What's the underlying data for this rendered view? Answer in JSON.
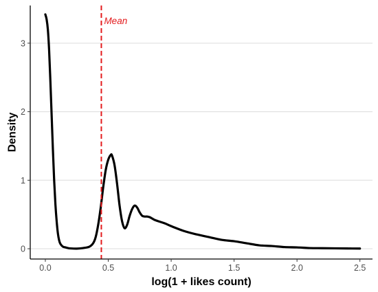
{
  "chart_data": {
    "type": "line",
    "title": "",
    "xlabel": "log(1 + likes count)",
    "ylabel": "Density",
    "xlim": [
      -0.12,
      2.6
    ],
    "ylim": [
      -0.15,
      3.55
    ],
    "xticks": [
      0.0,
      0.5,
      1.0,
      1.5,
      2.0,
      2.5
    ],
    "xtick_labels": [
      "0.0",
      "0.5",
      "1.0",
      "1.5",
      "2.0",
      "2.5"
    ],
    "yticks": [
      0,
      1,
      2,
      3
    ],
    "ytick_labels": [
      "0",
      "1",
      "2",
      "3"
    ],
    "grid": "horizontal major",
    "series": [
      {
        "x": [
          0.0,
          0.01,
          0.02,
          0.03,
          0.04,
          0.05,
          0.06,
          0.07,
          0.08,
          0.09,
          0.1,
          0.11,
          0.12,
          0.14,
          0.16,
          0.18,
          0.2,
          0.25,
          0.3,
          0.35,
          0.38,
          0.4,
          0.42,
          0.44,
          0.46,
          0.48,
          0.5,
          0.52,
          0.53,
          0.55,
          0.57,
          0.59,
          0.61,
          0.63,
          0.65,
          0.67,
          0.69,
          0.71,
          0.73,
          0.75,
          0.77,
          0.79,
          0.81,
          0.83,
          0.85,
          0.87,
          0.9,
          0.95,
          1.0,
          1.1,
          1.2,
          1.3,
          1.4,
          1.5,
          1.6,
          1.7,
          1.8,
          1.9,
          2.0,
          2.1,
          2.2,
          2.3,
          2.4,
          2.5
        ],
        "y": [
          3.42,
          3.35,
          3.2,
          2.9,
          2.45,
          1.95,
          1.45,
          1.0,
          0.65,
          0.4,
          0.22,
          0.12,
          0.07,
          0.03,
          0.02,
          0.01,
          0.005,
          0.002,
          0.01,
          0.03,
          0.08,
          0.17,
          0.35,
          0.6,
          0.9,
          1.15,
          1.3,
          1.37,
          1.36,
          1.22,
          0.95,
          0.63,
          0.4,
          0.3,
          0.35,
          0.48,
          0.58,
          0.63,
          0.6,
          0.53,
          0.48,
          0.47,
          0.47,
          0.46,
          0.44,
          0.42,
          0.4,
          0.37,
          0.33,
          0.26,
          0.21,
          0.17,
          0.13,
          0.11,
          0.08,
          0.05,
          0.04,
          0.025,
          0.02,
          0.01,
          0.008,
          0.006,
          0.004,
          0.003
        ],
        "color": "#000000"
      }
    ],
    "annotations": [
      {
        "type": "vline",
        "x": 0.445,
        "label": "Mean",
        "color": "#e31a1c",
        "style": "dashed"
      }
    ]
  }
}
